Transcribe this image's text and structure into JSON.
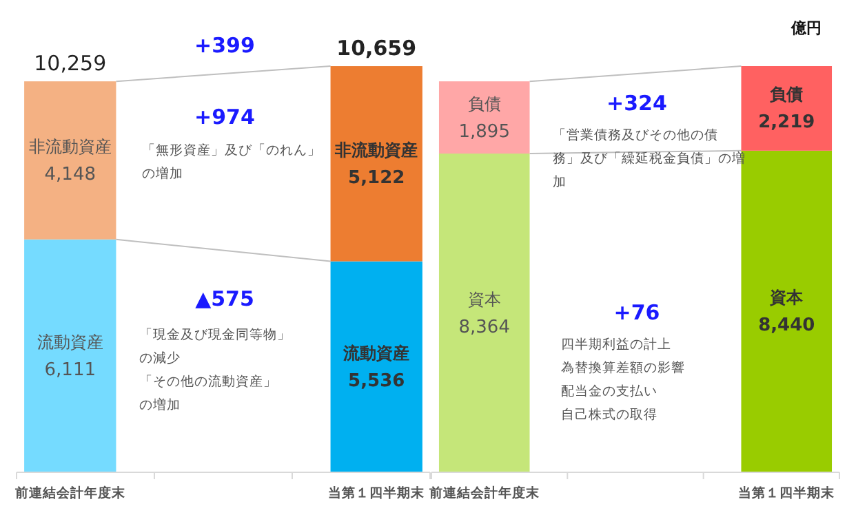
{
  "chart_data": [
    {
      "type": "bar",
      "stacked": true,
      "categories": [
        "前連結会計年度末",
        null,
        "当第１四半期末"
      ],
      "series": [
        {
          "name": "流動資産",
          "colors": [
            "#75dbff",
            null,
            "#00b0f0"
          ],
          "values": [
            6111,
            null,
            5536
          ],
          "value_labels": [
            "6,111",
            null,
            "5,536"
          ]
        },
        {
          "name": "非流動資産",
          "colors": [
            "#f4b183",
            null,
            "#ed7d31"
          ],
          "values": [
            4148,
            null,
            5122
          ],
          "value_labels": [
            "4,148",
            null,
            "5,122"
          ]
        }
      ],
      "totals": [
        "10,259",
        null,
        "10,659"
      ],
      "annotations": [
        "+399",
        "+974",
        "「無形資産」及び「のれん」の増加",
        "▲575",
        "「現金及び現金同等物」の減少",
        "「その他の流動資産」の増加"
      ]
    },
    {
      "type": "bar",
      "stacked": true,
      "categories": [
        "前連結会計年度末",
        null,
        "当第１四半期末"
      ],
      "series": [
        {
          "name": "資本",
          "colors": [
            "#c5e679",
            null,
            "#99cc00"
          ],
          "values": [
            8364,
            null,
            8440
          ],
          "value_labels": [
            "8,364",
            null,
            "8,440"
          ]
        },
        {
          "name": "負債",
          "colors": [
            "#ffa7a7",
            null,
            "#ff6161"
          ],
          "values": [
            1895,
            null,
            2219
          ],
          "value_labels": [
            "1,895",
            null,
            "2,219"
          ]
        }
      ],
      "annotations": [
        "+324",
        "「営業債務及びその他の債務」及び「繰延税金負債」の増加",
        "+76",
        "四半期利益の計上",
        "為替換算差額の影響",
        "配当金の支払い",
        "自己株式の取得",
        "億円"
      ]
    }
  ]
}
